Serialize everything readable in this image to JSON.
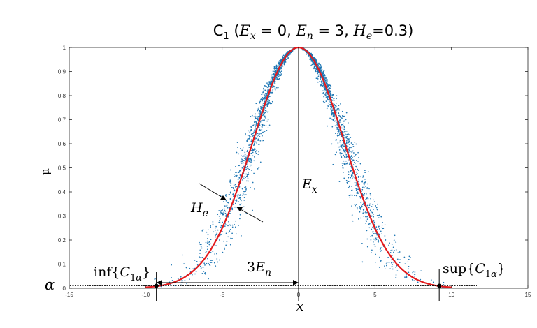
{
  "chart_data": {
    "type": "scatter",
    "title": "C₁ (Eₓ = 0, Eₙ = 3, Hₑ=0.3)",
    "xlabel": "x",
    "ylabel": "μ",
    "xlim": [
      -15,
      15
    ],
    "ylim": [
      0,
      1
    ],
    "x_ticks": [
      "-15",
      "-10",
      "-5",
      "0",
      "5",
      "10",
      "15"
    ],
    "y_ticks": [
      "0",
      "0.1",
      "0.2",
      "0.3",
      "0.4",
      "0.5",
      "0.6",
      "0.7",
      "0.8",
      "0.9",
      "1"
    ],
    "grid": false,
    "series": [
      {
        "kind": "scatter",
        "color": "#1f77b4",
        "model": {
          "Ex": 0,
          "En": 3,
          "He": 0.3
        }
      },
      {
        "kind": "line",
        "color": "#e31a1c",
        "model": {
          "Ex": 0,
          "En": 3
        },
        "x_range": [
          -10,
          10
        ]
      }
    ],
    "annotations": {
      "He": "He",
      "Ex": "Ex",
      "three_En": "3En",
      "inf": "inf{C1α}",
      "sup": "sup{C1α}",
      "alpha": "α",
      "alpha_value": 0.01,
      "inf_x": -9.3,
      "sup_x": 9.2
    }
  }
}
